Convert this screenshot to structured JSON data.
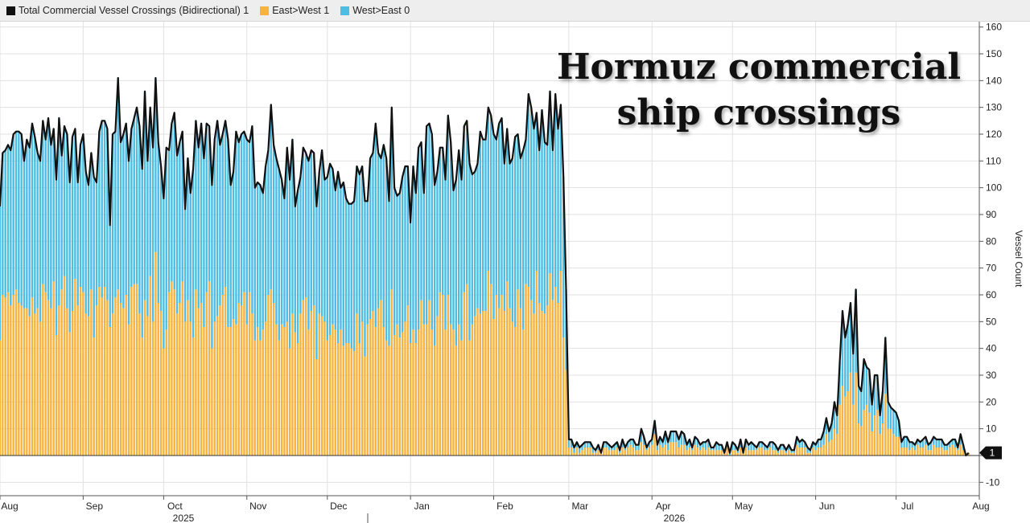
{
  "legend": {
    "items": [
      {
        "label": "Total Commercial Vessel Crossings (Bidirectional) 1",
        "color": "#111111"
      },
      {
        "label": "East>West 1",
        "color": "#f7b33d"
      },
      {
        "label": "West>East 0",
        "color": "#4dbde4"
      }
    ]
  },
  "chart_data": {
    "type": "bar",
    "title_lines": [
      "Hormuz commercial",
      "ship crossings"
    ],
    "ylabel": "Vessel Count",
    "ylim": [
      -15,
      162
    ],
    "yticks": [
      -10,
      0,
      10,
      20,
      30,
      40,
      50,
      60,
      70,
      80,
      90,
      100,
      110,
      120,
      130,
      140,
      150,
      160
    ],
    "x_tick_labels": [
      "Aug",
      "Sep",
      "Oct",
      "Nov",
      "Dec",
      "Jan",
      "Feb",
      "Mar",
      "Apr",
      "May",
      "Jun",
      "Jul",
      "Aug"
    ],
    "x_year_labels": [
      {
        "label": "2025",
        "after_month_index": 2
      },
      {
        "label": "2026",
        "after_month_index": 9
      }
    ],
    "last_value_label": "1",
    "colors": {
      "east_west": "#f7b33d",
      "west_east": "#4dbde4",
      "total": "#111111"
    },
    "x_start": "2025-08-01",
    "x_end": "2026-08-01",
    "series_note_anchors": {
      "total": [
        [
          "2025-08-01",
          106
        ],
        [
          "2025-08-15",
          115
        ],
        [
          "2025-09-01",
          112
        ],
        [
          "2025-09-15",
          118
        ],
        [
          "2025-10-01",
          117
        ],
        [
          "2025-10-15",
          114
        ],
        [
          "2025-11-01",
          112
        ],
        [
          "2025-11-15",
          106
        ],
        [
          "2025-12-01",
          104
        ],
        [
          "2025-12-15",
          105
        ],
        [
          "2026-01-01",
          110
        ],
        [
          "2026-01-15",
          112
        ],
        [
          "2026-02-01",
          118
        ],
        [
          "2026-02-15",
          125
        ],
        [
          "2026-02-26",
          123
        ],
        [
          "2026-02-28",
          35
        ],
        [
          "2026-03-01",
          5
        ],
        [
          "2026-03-15",
          3
        ],
        [
          "2026-04-01",
          6
        ],
        [
          "2026-04-10",
          7
        ],
        [
          "2026-04-15",
          5
        ],
        [
          "2026-05-01",
          3
        ],
        [
          "2026-05-15",
          4
        ],
        [
          "2026-06-01",
          3
        ],
        [
          "2026-06-08",
          17
        ],
        [
          "2026-06-13",
          46
        ],
        [
          "2026-06-18",
          25
        ],
        [
          "2026-06-25",
          24
        ],
        [
          "2026-07-05",
          5
        ],
        [
          "2026-07-15",
          5
        ],
        [
          "2026-07-25",
          4
        ],
        [
          "2026-07-28",
          1
        ]
      ],
      "east_west_share": [
        [
          "2025-08-01",
          0.5
        ],
        [
          "2025-12-01",
          0.45
        ],
        [
          "2026-02-25",
          0.48
        ],
        [
          "2026-03-10",
          0.55
        ],
        [
          "2026-06-10",
          0.5
        ],
        [
          "2026-07-28",
          0.55
        ]
      ]
    }
  }
}
